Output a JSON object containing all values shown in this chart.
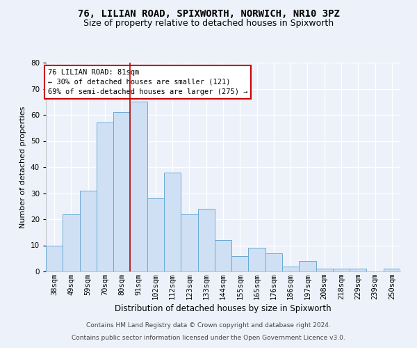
{
  "title1": "76, LILIAN ROAD, SPIXWORTH, NORWICH, NR10 3PZ",
  "title2": "Size of property relative to detached houses in Spixworth",
  "xlabel": "Distribution of detached houses by size in Spixworth",
  "ylabel": "Number of detached properties",
  "footnote1": "Contains HM Land Registry data © Crown copyright and database right 2024.",
  "footnote2": "Contains public sector information licensed under the Open Government Licence v3.0.",
  "annotation_line1": "76 LILIAN ROAD: 81sqm",
  "annotation_line2": "← 30% of detached houses are smaller (121)",
  "annotation_line3": "69% of semi-detached houses are larger (275) →",
  "bar_color": "#cfe0f5",
  "bar_edge_color": "#6aaad4",
  "vline_color": "#cc0000",
  "vline_x": 4.5,
  "categories": [
    "38sqm",
    "49sqm",
    "59sqm",
    "70sqm",
    "80sqm",
    "91sqm",
    "102sqm",
    "112sqm",
    "123sqm",
    "133sqm",
    "144sqm",
    "155sqm",
    "165sqm",
    "176sqm",
    "186sqm",
    "197sqm",
    "208sqm",
    "218sqm",
    "229sqm",
    "239sqm",
    "250sqm"
  ],
  "values": [
    10,
    22,
    31,
    57,
    61,
    65,
    28,
    38,
    22,
    24,
    12,
    6,
    9,
    7,
    2,
    4,
    1,
    1,
    1,
    0,
    1
  ],
  "ylim": [
    0,
    80
  ],
  "yticks": [
    0,
    10,
    20,
    30,
    40,
    50,
    60,
    70,
    80
  ],
  "background_color": "#edf2fa",
  "grid_color": "#ffffff",
  "title1_fontsize": 10,
  "title2_fontsize": 9,
  "tick_fontsize": 7.5,
  "xlabel_fontsize": 8.5,
  "ylabel_fontsize": 8,
  "annot_fontsize": 7.5,
  "footnote_fontsize": 6.5
}
